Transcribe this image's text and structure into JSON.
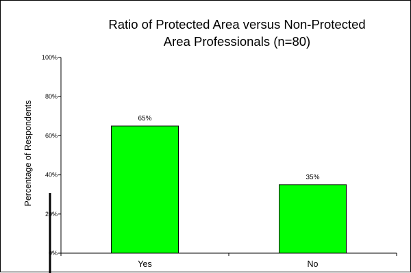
{
  "chart_data": {
    "type": "bar",
    "title_lines": [
      "Ratio of Protected Area versus Non-Protected",
      "Area Professionals (n=80)"
    ],
    "xlabel": "",
    "ylabel": "Percentage of Respondents",
    "categories": [
      "Yes",
      "No"
    ],
    "values": [
      65,
      35
    ],
    "data_labels": [
      "65%",
      "35%"
    ],
    "ylim": [
      0,
      100
    ],
    "yticks": [
      0,
      20,
      40,
      60,
      80,
      100
    ],
    "ytick_labels": [
      "0%",
      "20%",
      "40%",
      "60%",
      "80%",
      "100%"
    ],
    "grid": false,
    "legend": "none",
    "bar_color": "#00ff00",
    "bar_edge_color": "#000000"
  }
}
